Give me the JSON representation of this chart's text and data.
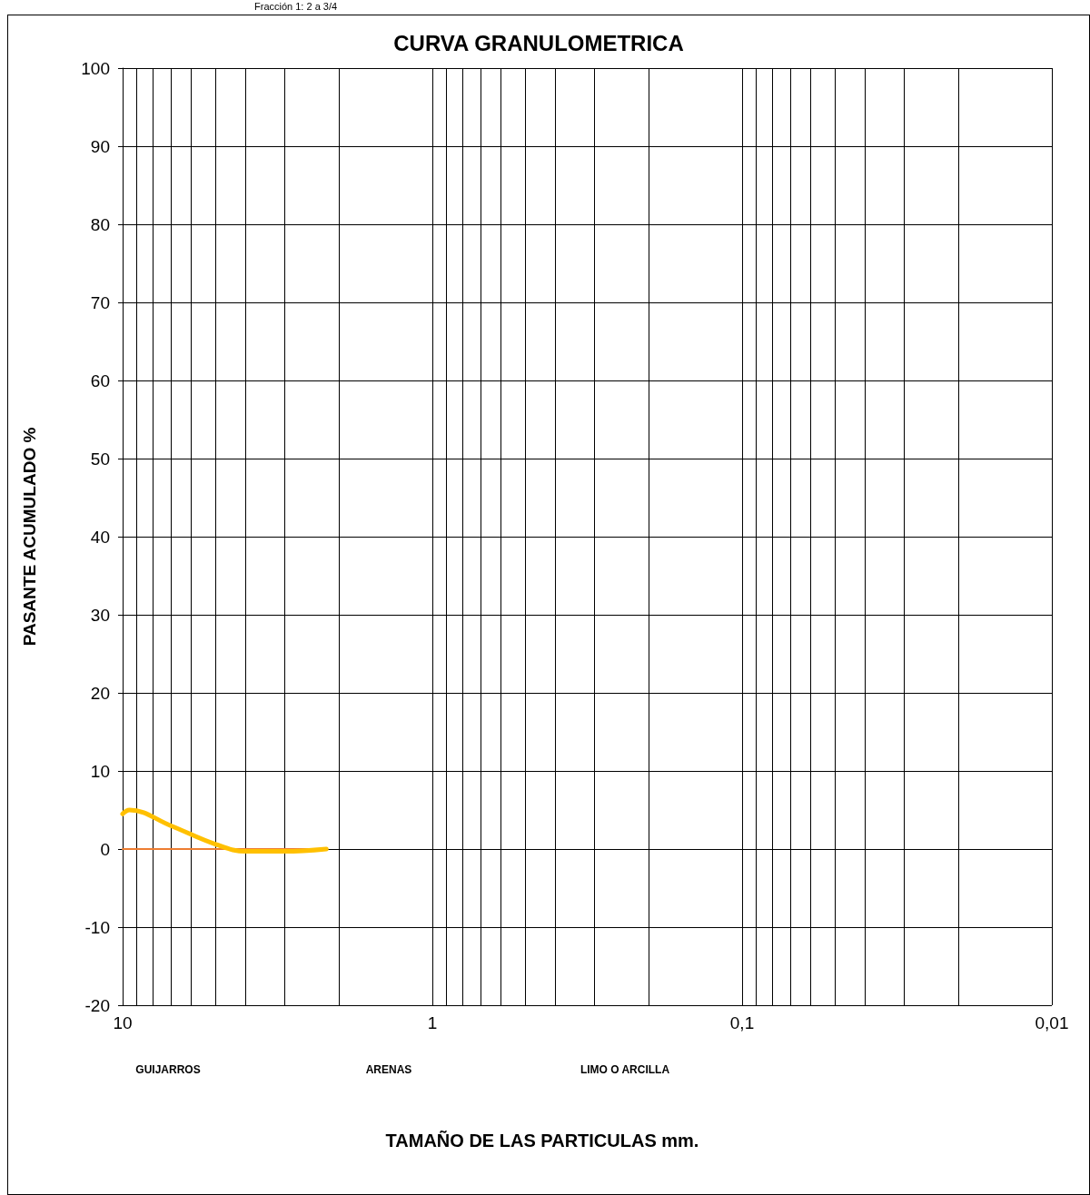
{
  "chart_data": {
    "type": "line",
    "title": "CURVA GRANULOMETRICA",
    "ylabel": "PASANTE ACUMULADO %",
    "annotations": [
      "Fracción 1: 2 a 3/4",
      "GUIJARROS",
      "ARENAS",
      "LIMO O ARCILLA",
      "TAMAÑO DE LAS PARTICULAS mm."
    ],
    "log": "x",
    "xlim": [
      10,
      0.01
    ],
    "ylim": [
      -20,
      100
    ],
    "xticks": [
      10,
      {
        "value": 9,
        "label": null
      },
      {
        "value": 8,
        "label": null
      },
      {
        "value": 7,
        "label": null
      },
      {
        "value": 6,
        "label": null
      },
      {
        "value": 5,
        "label": null
      },
      {
        "value": 4,
        "label": null
      },
      {
        "value": 3,
        "label": null
      },
      {
        "value": 2,
        "label": null
      },
      1,
      {
        "value": 0.9,
        "label": null
      },
      {
        "value": 0.8,
        "label": null
      },
      {
        "value": 0.7,
        "label": null
      },
      {
        "value": 0.6,
        "label": null
      },
      {
        "value": 0.5,
        "label": null
      },
      {
        "value": 0.4,
        "label": null
      },
      {
        "value": 0.3,
        "label": null
      },
      {
        "value": 0.2,
        "label": null
      },
      {
        "value": 0.1,
        "label": "0,1"
      },
      {
        "value": 0.09,
        "label": null
      },
      {
        "value": 0.08,
        "label": null
      },
      {
        "value": 0.07,
        "label": null
      },
      {
        "value": 0.06,
        "label": null
      },
      {
        "value": 0.05,
        "label": null
      },
      {
        "value": 0.04,
        "label": null
      },
      {
        "value": 0.03,
        "label": null
      },
      {
        "value": 0.02,
        "label": null
      },
      {
        "value": 0.01,
        "label": "0,01"
      }
    ],
    "yticks": [
      -20,
      -10,
      0,
      10,
      20,
      30,
      40,
      50,
      60,
      70,
      80,
      90,
      100
    ],
    "grid": true,
    "marker": "none",
    "line_style": "solid",
    "series": [
      {
        "color": "#ffc000",
        "x": [
          10,
          9.5,
          7,
          5,
          4,
          3,
          2.2
        ],
        "values": [
          4.5,
          5,
          3,
          0.6,
          -0.3,
          -0.3,
          0
        ]
      },
      {
        "color": "#ed7d31",
        "x": [
          10,
          2.2
        ],
        "values": [
          0,
          0
        ]
      }
    ]
  }
}
